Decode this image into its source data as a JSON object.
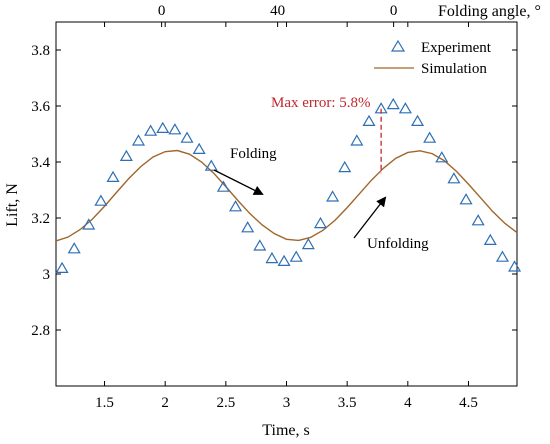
{
  "chart_data": {
    "type": "scatter",
    "xlabel": "Time, s",
    "ylabel": "Lift, N",
    "top_axis_label": "Folding angle, °",
    "xlim": [
      1.1,
      4.9
    ],
    "ylim": [
      2.6,
      3.9
    ],
    "x_ticks": [
      1.5,
      2,
      2.5,
      3,
      3.5,
      4,
      4.5
    ],
    "x_tick_labels": [
      "1.5",
      "2",
      "2.5",
      "3",
      "3.5",
      "4",
      "4.5"
    ],
    "y_ticks": [
      2.8,
      3,
      3.2,
      3.4,
      3.6,
      3.8
    ],
    "y_tick_labels": [
      "2.8",
      "3",
      "3.2",
      "3.4",
      "3.6",
      "3.8"
    ],
    "top_ticks": [
      1.9706,
      2.9268,
      3.8829
    ],
    "top_tick_labels": [
      "0",
      "40",
      "0"
    ],
    "legend_position": "top-right",
    "series": [
      {
        "name": "Experiment",
        "marker": "triangle",
        "color": "#2e6fb3",
        "x": [
          1.15,
          1.25,
          1.37,
          1.47,
          1.57,
          1.68,
          1.78,
          1.88,
          1.98,
          2.08,
          2.18,
          2.28,
          2.38,
          2.48,
          2.58,
          2.68,
          2.78,
          2.88,
          2.98,
          3.08,
          3.18,
          3.28,
          3.38,
          3.48,
          3.58,
          3.68,
          3.78,
          3.88,
          3.98,
          4.08,
          4.18,
          4.28,
          4.38,
          4.48,
          4.58,
          4.68,
          4.78,
          4.88
        ],
        "y": [
          3.02,
          3.09,
          3.175,
          3.26,
          3.345,
          3.42,
          3.475,
          3.51,
          3.52,
          3.515,
          3.485,
          3.445,
          3.385,
          3.31,
          3.24,
          3.165,
          3.1,
          3.055,
          3.045,
          3.06,
          3.105,
          3.18,
          3.275,
          3.38,
          3.475,
          3.545,
          3.59,
          3.605,
          3.59,
          3.545,
          3.485,
          3.415,
          3.34,
          3.265,
          3.19,
          3.12,
          3.06,
          3.025
        ]
      },
      {
        "name": "Simulation",
        "line": true,
        "color": "#a0662a",
        "x": [
          1.1,
          1.2,
          1.3,
          1.4,
          1.5,
          1.6,
          1.7,
          1.8,
          1.9,
          2.0,
          2.1,
          2.2,
          2.3,
          2.4,
          2.5,
          2.6,
          2.7,
          2.8,
          2.9,
          3.0,
          3.1,
          3.2,
          3.3,
          3.4,
          3.5,
          3.6,
          3.7,
          3.8,
          3.9,
          4.0,
          4.1,
          4.2,
          4.3,
          4.4,
          4.5,
          4.6,
          4.7,
          4.8,
          4.9
        ],
        "y": [
          3.118,
          3.132,
          3.159,
          3.196,
          3.242,
          3.292,
          3.341,
          3.384,
          3.418,
          3.437,
          3.441,
          3.428,
          3.4,
          3.36,
          3.312,
          3.262,
          3.215,
          3.175,
          3.144,
          3.124,
          3.12,
          3.131,
          3.156,
          3.192,
          3.237,
          3.286,
          3.335,
          3.378,
          3.413,
          3.434,
          3.44,
          3.43,
          3.405,
          3.367,
          3.321,
          3.272,
          3.223,
          3.181,
          3.148
        ]
      }
    ],
    "annotations": {
      "max_error": {
        "text": "Max error: 5.8%",
        "x": 3.78,
        "y_low": 3.36,
        "y_high": 3.59,
        "color": "#c0272d"
      },
      "folding": {
        "text": "Folding"
      },
      "unfolding": {
        "text": "Unfolding"
      }
    }
  }
}
